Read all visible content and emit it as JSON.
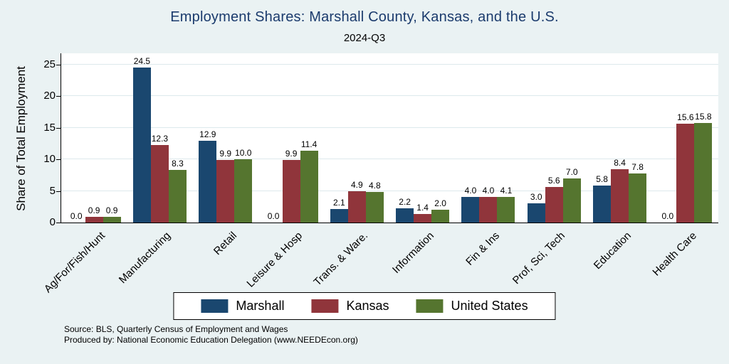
{
  "title": "Employment Shares: Marshall County, Kansas, and the U.S.",
  "subtitle": "2024-Q3",
  "colors": {
    "background": "#eaf2f3",
    "title": "#1b3b6d",
    "marshall": "#1a476f",
    "kansas": "#90353b",
    "united_states": "#55752f"
  },
  "chart_data": {
    "type": "bar",
    "title": "Employment Shares: Marshall County, Kansas, and the U.S.",
    "subtitle": "2024-Q3",
    "ylabel": "Share of Total Employment",
    "xlabel": "",
    "ylim": [
      0,
      25
    ],
    "yticks": [
      0,
      5,
      10,
      15,
      20,
      25
    ],
    "grid": true,
    "legend_position": "bottom",
    "categories": [
      "Ag/For/Fish/Hunt",
      "Manufacturing",
      "Retail",
      "Leisure & Hosp",
      "Trans. & Ware.",
      "Information",
      "Fin & Ins",
      "Prof, Sci, Tech",
      "Education",
      "Health Care"
    ],
    "series": [
      {
        "name": "Marshall",
        "color": "#1a476f",
        "values": [
          0.0,
          24.5,
          12.9,
          0.0,
          2.1,
          2.2,
          4.0,
          3.0,
          5.8,
          0.0
        ]
      },
      {
        "name": "Kansas",
        "color": "#90353b",
        "values": [
          0.9,
          12.3,
          9.9,
          9.9,
          4.9,
          1.4,
          4.0,
          5.6,
          8.4,
          15.6
        ]
      },
      {
        "name": "United States",
        "color": "#55752f",
        "values": [
          0.9,
          8.3,
          10.0,
          11.4,
          4.8,
          2.0,
          4.1,
          7.0,
          7.8,
          15.8
        ]
      }
    ]
  },
  "footer": {
    "line1": "Source: BLS, Quarterly Census of Employment and Wages",
    "line2": "Produced by: National Economic Education Delegation (www.NEEDEcon.org)"
  }
}
